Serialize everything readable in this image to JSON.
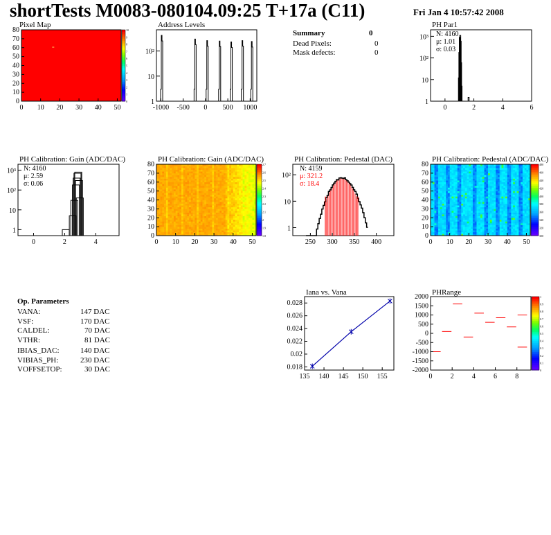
{
  "header": {
    "title": "shortTests M0083-080104.09:25 T+17a (C11)",
    "date": "Fri Jan  4 10:57:42 2008"
  },
  "colors": {
    "hist_line": "#000000",
    "fit_red": "#ff0000",
    "graph_blue": "#0000aa",
    "frame": "#000000"
  },
  "summary": {
    "title": "Summary",
    "total": "0",
    "rows": [
      {
        "label": "Dead Pixels:",
        "value": "0"
      },
      {
        "label": "Mask defects:",
        "value": "0"
      }
    ]
  },
  "op_params": {
    "title": "Op. Parameters",
    "rows": [
      {
        "label": "VANA:",
        "value": "147 DAC"
      },
      {
        "label": "VSF:",
        "value": "170 DAC"
      },
      {
        "label": "CALDEL:",
        "value": "70 DAC"
      },
      {
        "label": "VTHR:",
        "value": "81 DAC"
      },
      {
        "label": "IBIAS_DAC:",
        "value": "140 DAC"
      },
      {
        "label": "VIBIAS_PH:",
        "value": "230 DAC"
      },
      {
        "label": "VOFFSETOP:",
        "value": "30 DAC"
      }
    ]
  },
  "chart_data": [
    {
      "id": "pixel_map",
      "type": "heatmap",
      "title": "Pixel Map",
      "xlim": [
        0,
        52
      ],
      "ylim": [
        0,
        80
      ],
      "xticks": [
        "0",
        "10",
        "20",
        "30",
        "40",
        "50"
      ],
      "yticks": [
        "0",
        "10",
        "20",
        "30",
        "40",
        "50",
        "60",
        "70",
        "80"
      ],
      "zticks": [
        "0",
        "1",
        "2",
        "3",
        "4",
        "5",
        "6",
        "7",
        "8",
        "9",
        "10"
      ],
      "fill_value": 10,
      "special_cells": [
        {
          "col": 16,
          "row": 60,
          "value": 10
        }
      ]
    },
    {
      "id": "address_levels",
      "type": "bar",
      "title": "Address Levels",
      "xlim": [
        -1100,
        1150
      ],
      "ylim_log": [
        1,
        700
      ],
      "xticks": [
        "-1000",
        "-500",
        "0",
        "500",
        "1000"
      ],
      "yticks": [
        "1",
        "10",
        "10²"
      ],
      "peaks": [
        {
          "x": -960,
          "height": 420
        },
        {
          "x": -210,
          "height": 300
        },
        {
          "x": 60,
          "height": 260
        },
        {
          "x": 340,
          "height": 250
        },
        {
          "x": 600,
          "height": 230
        },
        {
          "x": 850,
          "height": 260
        },
        {
          "x": 1060,
          "height": 240
        }
      ]
    },
    {
      "id": "ph_par1",
      "type": "bar",
      "title": "PH Par1",
      "xlim": [
        -1,
        6
      ],
      "ylim_log": [
        1,
        2000
      ],
      "xticks": [
        "0",
        "2",
        "4",
        "6"
      ],
      "yticks": [
        "1",
        "10",
        "10²",
        "10³"
      ],
      "stats": {
        "n": "N: 4160",
        "mean": "μ: 1.01",
        "sigma": "σ: 0.03"
      },
      "bins": [
        {
          "x": 0.93,
          "y": 12
        },
        {
          "x": 0.96,
          "y": 180
        },
        {
          "x": 0.99,
          "y": 900
        },
        {
          "x": 1.02,
          "y": 1100
        },
        {
          "x": 1.05,
          "y": 600
        },
        {
          "x": 1.08,
          "y": 60
        },
        {
          "x": 1.11,
          "y": 5
        },
        {
          "x": 1.6,
          "y": 1.5
        }
      ]
    },
    {
      "id": "gain_1d",
      "type": "bar",
      "title": "PH Calibration: Gain (ADC/DAC)",
      "xlim": [
        -1,
        5.5
      ],
      "ylim_log": [
        0.5,
        2000
      ],
      "xticks": [
        "0",
        "2",
        "4"
      ],
      "yticks": [
        "1",
        "10",
        "10²",
        "10³"
      ],
      "stats": {
        "n": "N: 4160",
        "mean": "μ: 2.59",
        "sigma": "σ: 0.06"
      },
      "bins": [
        {
          "x": 1.85,
          "y": 1
        },
        {
          "x": 2.3,
          "y": 5
        },
        {
          "x": 2.4,
          "y": 30
        },
        {
          "x": 2.5,
          "y": 180
        },
        {
          "x": 2.55,
          "y": 400
        },
        {
          "x": 2.6,
          "y": 700
        },
        {
          "x": 2.65,
          "y": 800
        },
        {
          "x": 2.7,
          "y": 300
        },
        {
          "x": 2.75,
          "y": 40
        }
      ]
    },
    {
      "id": "gain_map",
      "type": "heatmap",
      "title": "PH Calibration: Gain (ADC/DAC)",
      "xlim": [
        0,
        52
      ],
      "ylim": [
        0,
        80
      ],
      "xticks": [
        "0",
        "10",
        "20",
        "30",
        "40",
        "50"
      ],
      "yticks": [
        "0",
        "10",
        "20",
        "30",
        "40",
        "50",
        "60",
        "70",
        "80"
      ],
      "zticks": [
        "1.8",
        "1.9",
        "2",
        "2.1",
        "2.2",
        "2.3",
        "2.4",
        "2.5",
        "2.6",
        "2.7"
      ],
      "zrange": [
        1.75,
        2.75
      ],
      "description": "mostly red (~2.5), brighter orange/yellow toward columns 40-50"
    },
    {
      "id": "pedestal_1d",
      "type": "bar",
      "title": "PH Calibration: Pedestal (DAC)",
      "xlim": [
        210,
        440
      ],
      "ylim_log": [
        0.5,
        250
      ],
      "xticks": [
        "250",
        "300",
        "350",
        "400"
      ],
      "yticks": [
        "1",
        "10",
        "10²"
      ],
      "stats": {
        "n": "N: 4159",
        "mean": "μ: 321.2",
        "sigma": "σ: 18.4"
      },
      "fit_range": [
        284,
        358
      ],
      "mean_value": 321.2,
      "sigma_value": 18.4,
      "peak_height": 75
    },
    {
      "id": "pedestal_map",
      "type": "heatmap",
      "title": "PH Calibration: Pedestal (ADC/DAC)",
      "xlim": [
        0,
        52
      ],
      "ylim": [
        0,
        80
      ],
      "xticks": [
        "0",
        "10",
        "20",
        "30",
        "40",
        "50"
      ],
      "yticks": [
        "0",
        "10",
        "20",
        "30",
        "40",
        "50",
        "60",
        "70",
        "80"
      ],
      "zticks": [
        "300",
        "320",
        "340",
        "360",
        "380",
        "400",
        "420",
        "440",
        "460",
        "480"
      ],
      "zrange": [
        280,
        500
      ],
      "description": "cyan/blue columns with alternating darker blue stripes"
    },
    {
      "id": "iana_vs_vana",
      "type": "line",
      "title": "Iana vs. Vana",
      "xlim": [
        135,
        158
      ],
      "ylim": [
        0.0175,
        0.029
      ],
      "xticks": [
        "135",
        "140",
        "145",
        "150",
        "155"
      ],
      "yticks": [
        "0.018",
        "0.02",
        "0.022",
        "0.024",
        "0.026",
        "0.028"
      ],
      "x": [
        137,
        147,
        157
      ],
      "y": [
        0.0181,
        0.0235,
        0.0283
      ]
    },
    {
      "id": "ph_range",
      "type": "scatter",
      "title": "PHRange",
      "xlim": [
        0,
        9.3
      ],
      "ylim": [
        -2000,
        2000
      ],
      "xticks": [
        "0",
        "2",
        "4",
        "6",
        "8"
      ],
      "yticks": [
        "-2000",
        "-1500",
        "-1000",
        "-500",
        "0",
        "500",
        "1000",
        "1500",
        "2000"
      ],
      "zticks": [
        "0",
        "0.1",
        "0.2",
        "0.3",
        "0.4",
        "0.5",
        "0.6",
        "0.7",
        "0.8",
        "0.9",
        "1"
      ],
      "segments": [
        {
          "x": 0,
          "y": -1000
        },
        {
          "x": 1,
          "y": 100
        },
        {
          "x": 2,
          "y": 1600
        },
        {
          "x": 3,
          "y": -200
        },
        {
          "x": 4,
          "y": 1100
        },
        {
          "x": 5,
          "y": 600
        },
        {
          "x": 6,
          "y": 850
        },
        {
          "x": 7,
          "y": 350
        },
        {
          "x": 8,
          "y": -750
        },
        {
          "x": 8,
          "y": 1000
        }
      ]
    }
  ]
}
